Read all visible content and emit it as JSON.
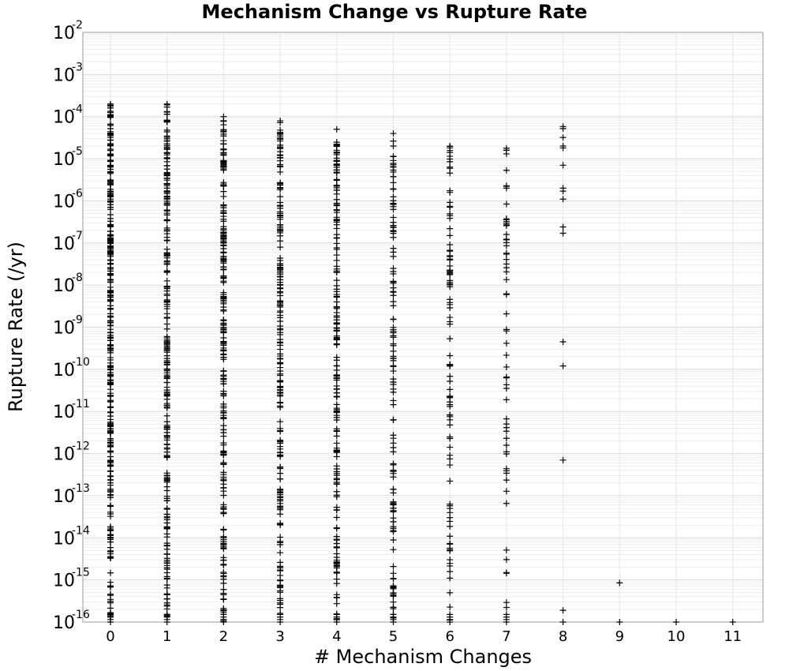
{
  "chart_data": {
    "type": "scatter",
    "title": "Mechanism Change vs Rupture Rate",
    "xlabel": "# Mechanism Changes",
    "ylabel": "Rupture Rate (/yr)",
    "xlim": [
      -0.5,
      11.5
    ],
    "ylim": [
      1e-16,
      0.01
    ],
    "y_scale": "log",
    "grid": true,
    "marker": "plus",
    "marker_color": "#000000",
    "x_ticks": [
      "0",
      "1",
      "2",
      "3",
      "4",
      "5",
      "6",
      "7",
      "8",
      "9",
      "10",
      "11"
    ],
    "y_ticks": [
      {
        "base": "10",
        "exp": "-2"
      },
      {
        "base": "10",
        "exp": "-3"
      },
      {
        "base": "10",
        "exp": "-4"
      },
      {
        "base": "10",
        "exp": "-5"
      },
      {
        "base": "10",
        "exp": "-6"
      },
      {
        "base": "10",
        "exp": "-7"
      },
      {
        "base": "10",
        "exp": "-8"
      },
      {
        "base": "10",
        "exp": "-9"
      },
      {
        "base": "10",
        "exp": "-10"
      },
      {
        "base": "10",
        "exp": "-11"
      },
      {
        "base": "10",
        "exp": "-12"
      },
      {
        "base": "10",
        "exp": "-13"
      },
      {
        "base": "10",
        "exp": "-14"
      },
      {
        "base": "10",
        "exp": "-15"
      },
      {
        "base": "10",
        "exp": "-16"
      }
    ],
    "columns": [
      {
        "x": 0,
        "log10_range": [
          -16,
          -3.7
        ],
        "density": 320,
        "floor_points": true
      },
      {
        "x": 1,
        "log10_range": [
          -16,
          -3.7
        ],
        "density": 240,
        "floor_points": true
      },
      {
        "x": 2,
        "log10_range": [
          -16,
          -4.0
        ],
        "density": 230,
        "floor_points": true
      },
      {
        "x": 3,
        "log10_range": [
          -16,
          -4.1
        ],
        "density": 200,
        "floor_points": true
      },
      {
        "x": 4,
        "log10_range": [
          -16,
          -4.3
        ],
        "density": 180,
        "floor_points": true
      },
      {
        "x": 5,
        "log10_range": [
          -16,
          -4.4
        ],
        "density": 130,
        "floor_points": true
      },
      {
        "x": 6,
        "log10_range": [
          -16,
          -4.7
        ],
        "density": 95,
        "floor_points": true
      },
      {
        "x": 7,
        "log10_range": [
          -16,
          -4.75
        ],
        "density": 60,
        "floor_points": true
      }
    ],
    "points": [
      {
        "x": 8,
        "y": 5.8e-05
      },
      {
        "x": 8,
        "y": 5.2e-05
      },
      {
        "x": 8,
        "y": 3.2e-05
      },
      {
        "x": 8,
        "y": 2e-05
      },
      {
        "x": 8,
        "y": 1.8e-05
      },
      {
        "x": 8,
        "y": 7e-06
      },
      {
        "x": 8,
        "y": 2e-06
      },
      {
        "x": 8,
        "y": 1.7e-06
      },
      {
        "x": 8,
        "y": 1.1e-06
      },
      {
        "x": 8,
        "y": 2.4e-07
      },
      {
        "x": 8,
        "y": 1.7e-07
      },
      {
        "x": 8,
        "y": 4.5e-10
      },
      {
        "x": 8,
        "y": 1.2e-10
      },
      {
        "x": 8,
        "y": 7e-13
      },
      {
        "x": 8,
        "y": 1.9e-16
      },
      {
        "x": 8,
        "y": 1e-16
      },
      {
        "x": 9,
        "y": 8.5e-16
      },
      {
        "x": 9,
        "y": 1e-16
      },
      {
        "x": 10,
        "y": 1e-16
      },
      {
        "x": 11,
        "y": 1e-16
      }
    ]
  }
}
